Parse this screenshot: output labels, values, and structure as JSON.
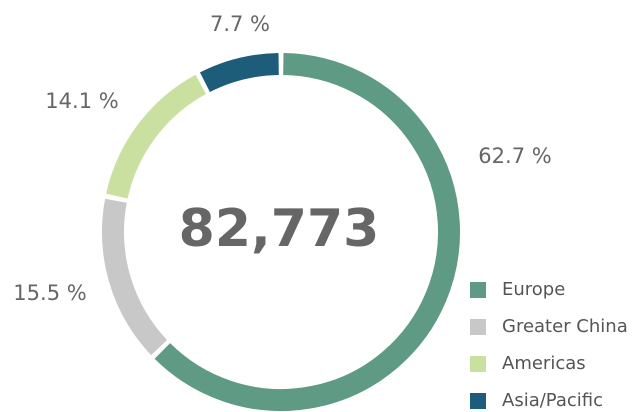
{
  "chart_data": {
    "type": "donut",
    "center_text": "82,773",
    "categories": [
      "Europe",
      "Greater China",
      "Americas",
      "Asia/Pacific"
    ],
    "values": [
      62.7,
      15.5,
      14.1,
      7.7
    ],
    "value_labels": [
      "62.7 %",
      "15.5 %",
      "14.1 %",
      "7.7 %"
    ],
    "colors": [
      "#5f9a84",
      "#c8c8c8",
      "#c9e0a1",
      "#1d5d7a"
    ],
    "legend": "bottom-right"
  }
}
